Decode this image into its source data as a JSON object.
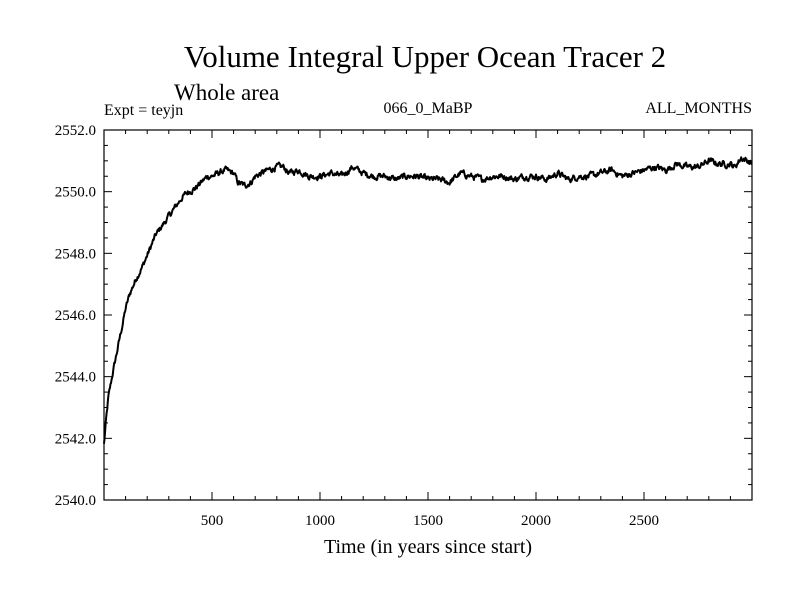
{
  "header": {
    "title": "Volume Integral Upper Ocean Tracer 2",
    "subtitle": "Whole area",
    "left_label": "Expt = teyjn",
    "center_label": "066_0_MaBP",
    "right_label": "ALL_MONTHS"
  },
  "chart_data": {
    "type": "line",
    "title": "Volume Integral Upper Ocean Tracer 2",
    "subtitle": "Whole area",
    "xlabel": "Time (in years since start)",
    "ylabel": "",
    "xlim": [
      0,
      3000
    ],
    "ylim": [
      2540.0,
      2552.0
    ],
    "x_ticks": [
      500,
      1000,
      1500,
      2000,
      2500
    ],
    "x_tick_labels": [
      "500",
      "1000",
      "1500",
      "2000",
      "2500"
    ],
    "y_ticks": [
      2540.0,
      2542.0,
      2544.0,
      2546.0,
      2548.0,
      2550.0,
      2552.0
    ],
    "y_tick_labels": [
      "2540.0",
      "2542.0",
      "2544.0",
      "2546.0",
      "2548.0",
      "2550.0",
      "2552.0"
    ],
    "grid": false,
    "series": [
      {
        "name": "Upper Ocean Tracer 2",
        "color": "#000000",
        "x": [
          0,
          10,
          20,
          40,
          60,
          80,
          100,
          120,
          150,
          180,
          210,
          240,
          270,
          300,
          330,
          360,
          390,
          420,
          450,
          480,
          500,
          530,
          560,
          600,
          620,
          650,
          680,
          700,
          730,
          760,
          800,
          830,
          860,
          900,
          950,
          1000,
          1050,
          1100,
          1150,
          1200,
          1250,
          1300,
          1350,
          1400,
          1450,
          1500,
          1550,
          1600,
          1650,
          1700,
          1750,
          1800,
          1850,
          1900,
          1950,
          2000,
          2050,
          2100,
          2150,
          2200,
          2250,
          2300,
          2350,
          2400,
          2450,
          2500,
          2550,
          2600,
          2650,
          2700,
          2750,
          2800,
          2850,
          2900,
          2920,
          2950,
          2980,
          3000
        ],
        "values": [
          2541.8,
          2542.6,
          2543.3,
          2544.1,
          2544.8,
          2545.5,
          2546.2,
          2546.7,
          2547.2,
          2547.6,
          2548.1,
          2548.6,
          2548.9,
          2549.2,
          2549.5,
          2549.8,
          2550.0,
          2550.1,
          2550.3,
          2550.5,
          2550.5,
          2550.6,
          2550.7,
          2550.6,
          2550.3,
          2550.2,
          2550.3,
          2550.5,
          2550.6,
          2550.7,
          2550.8,
          2550.8,
          2550.6,
          2550.7,
          2550.5,
          2550.5,
          2550.6,
          2550.5,
          2550.8,
          2550.6,
          2550.5,
          2550.5,
          2550.4,
          2550.5,
          2550.5,
          2550.4,
          2550.4,
          2550.3,
          2550.6,
          2550.5,
          2550.4,
          2550.5,
          2550.5,
          2550.4,
          2550.5,
          2550.5,
          2550.4,
          2550.6,
          2550.4,
          2550.5,
          2550.5,
          2550.6,
          2550.7,
          2550.5,
          2550.6,
          2550.7,
          2550.8,
          2550.7,
          2550.9,
          2550.8,
          2550.8,
          2551.0,
          2550.9,
          2550.9,
          2550.8,
          2551.1,
          2551.0,
          2550.9
        ]
      }
    ]
  }
}
